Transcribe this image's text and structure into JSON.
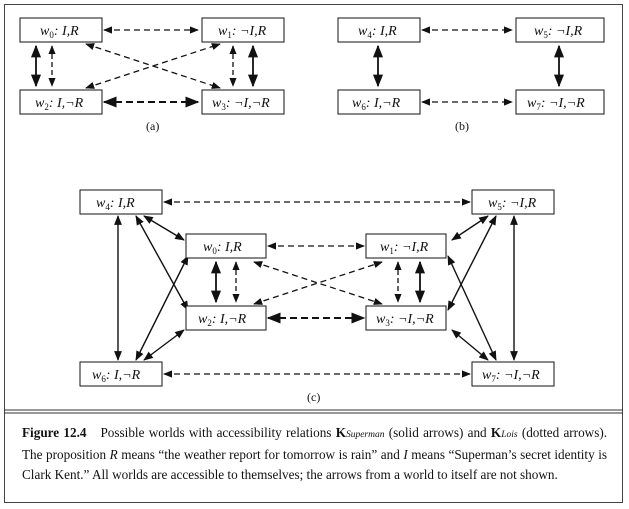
{
  "worlds": {
    "w0": {
      "name": "w",
      "sub": "0",
      "label": ": I,R"
    },
    "w1": {
      "name": "w",
      "sub": "1",
      "label": ": ¬I,R"
    },
    "w2": {
      "name": "w",
      "sub": "2",
      "label": ": I,¬R"
    },
    "w3": {
      "name": "w",
      "sub": "3",
      "label": ": ¬I,¬R"
    },
    "w4": {
      "name": "w",
      "sub": "4",
      "label": ": I,R"
    },
    "w5": {
      "name": "w",
      "sub": "5",
      "label": ": ¬I,R"
    },
    "w6": {
      "name": "w",
      "sub": "6",
      "label": ": I,¬R"
    },
    "w7": {
      "name": "w",
      "sub": "7",
      "label": ": ¬I,¬R"
    }
  },
  "panels": {
    "a": "(a)",
    "b": "(b)",
    "c": "(c)"
  },
  "caption": {
    "figure_label": "Figure 12.4",
    "text_1": "Possible worlds with accessibility relations ",
    "k1_bold": "K",
    "k1_sub": "Superman",
    "text_2": " (solid arrows) and ",
    "k2_bold": "K",
    "k2_sub": "Lois",
    "text_3": " (dotted arrows). The proposition ",
    "r_var": "R",
    "text_4": " means “the weather report for tomorrow is rain” and ",
    "i_var": "I",
    "text_5": " means “Superman’s secret identity is Clark Kent.” All worlds are accessible to themselves; the arrows from a world to itself are not shown."
  }
}
